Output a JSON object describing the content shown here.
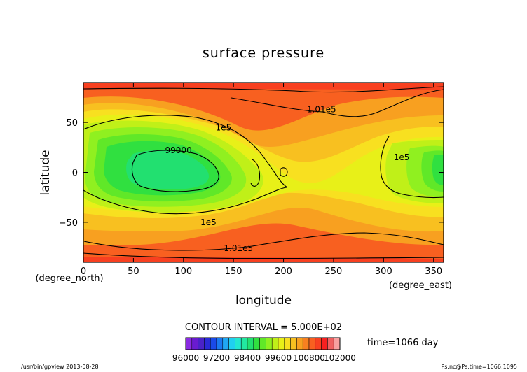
{
  "chart_data": {
    "type": "heatmap",
    "title": "surface pressure",
    "xlabel": "longitude",
    "ylabel": "latitude",
    "x_unit": "(degree_east)",
    "y_unit": "(degree_north)",
    "xlim": [
      0,
      360
    ],
    "ylim": [
      -90,
      90
    ],
    "x_ticks": [
      0,
      50,
      100,
      150,
      200,
      250,
      300,
      350
    ],
    "y_ticks": [
      -50,
      0,
      50
    ],
    "x_tick_labels": [
      "0",
      "50",
      "100",
      "150",
      "200",
      "250",
      "300",
      "350"
    ],
    "y_tick_labels": [
      "−50",
      "0",
      "50"
    ],
    "grid": false,
    "contour_interval_text": "CONTOUR INTERVAL = 5.000E+02",
    "time_text": "time=1066 day",
    "contour_labels": [
      {
        "text": "1.01e5",
        "x": 238,
        "y": 63
      },
      {
        "text": "1e5",
        "x": 140,
        "y": 45
      },
      {
        "text": "99000",
        "x": 95,
        "y": 22
      },
      {
        "text": "1e5",
        "x": 318,
        "y": 15
      },
      {
        "text": "1e5",
        "x": 125,
        "y": -50
      },
      {
        "text": "1.01e5",
        "x": 155,
        "y": -76
      }
    ],
    "color_levels": [
      96000,
      97200,
      98400,
      99600,
      100800,
      102000
    ],
    "colorbar_labels": [
      "96000",
      "97200",
      "98400",
      "99600",
      "100800",
      "102000"
    ],
    "colorbar_colors": [
      "#8a2be2",
      "#6a1bd0",
      "#4a22c8",
      "#2a2ad8",
      "#1a4ae8",
      "#1a7af0",
      "#20a8f4",
      "#20d0f0",
      "#22e8d0",
      "#22e8a0",
      "#22e070",
      "#30e040",
      "#60e828",
      "#90f020",
      "#c0f018",
      "#e8f018",
      "#f8e020",
      "#f8c020",
      "#f8a020",
      "#f88020",
      "#f86020",
      "#f84020",
      "#f82020",
      "#f06060",
      "#f8a0a0"
    ]
  },
  "footer": {
    "left": "/usr/bin/gpview   2013-08-28",
    "right": "Ps.nc@Ps,time=1066:1095"
  }
}
